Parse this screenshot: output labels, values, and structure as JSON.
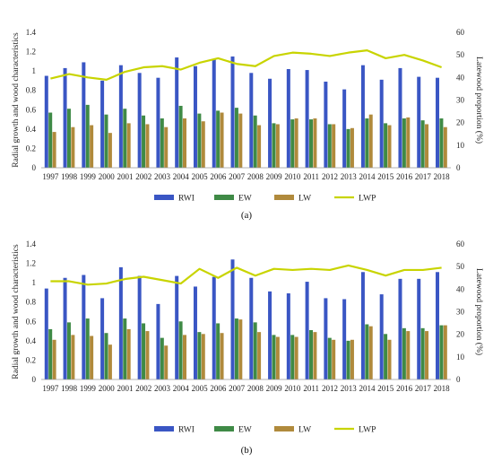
{
  "chart_data": [
    {
      "type": "bar",
      "panel_label": "(a)",
      "categories": [
        "1997",
        "1998",
        "1999",
        "2000",
        "2001",
        "2002",
        "2003",
        "2004",
        "2005",
        "2006",
        "2007",
        "2008",
        "2009",
        "2010",
        "2011",
        "2012",
        "2013",
        "2014",
        "2015",
        "2016",
        "2017",
        "2018"
      ],
      "ylabel": "Radial growth and wood characteristics",
      "y2label": "Latewood proportion (%)",
      "ylim": [
        0,
        1.4
      ],
      "y2lim": [
        0,
        60
      ],
      "yticks": [
        "0",
        "0.2",
        "0.4",
        "0.6",
        "0.8",
        "1",
        "1.2",
        "1.4"
      ],
      "y2ticks": [
        "0",
        "10",
        "20",
        "30",
        "40",
        "50",
        "60"
      ],
      "series": [
        {
          "name": "RWI",
          "kind": "bar",
          "axis": "left",
          "color": "#3a56c4",
          "values": [
            0.95,
            1.03,
            1.09,
            0.9,
            1.06,
            0.98,
            0.93,
            1.14,
            1.05,
            1.12,
            1.15,
            0.98,
            0.92,
            1.02,
            1.01,
            0.89,
            0.81,
            1.06,
            0.91,
            1.03,
            0.94,
            0.93
          ]
        },
        {
          "name": "EW",
          "kind": "bar",
          "axis": "left",
          "color": "#3f8a46",
          "values": [
            0.57,
            0.61,
            0.65,
            0.55,
            0.61,
            0.54,
            0.51,
            0.64,
            0.56,
            0.59,
            0.62,
            0.54,
            0.46,
            0.5,
            0.5,
            0.45,
            0.4,
            0.51,
            0.46,
            0.51,
            0.49,
            0.51
          ]
        },
        {
          "name": "LW",
          "kind": "bar",
          "axis": "left",
          "color": "#b08a3c",
          "values": [
            0.37,
            0.42,
            0.44,
            0.36,
            0.46,
            0.45,
            0.42,
            0.51,
            0.48,
            0.57,
            0.56,
            0.44,
            0.45,
            0.51,
            0.51,
            0.45,
            0.41,
            0.55,
            0.44,
            0.52,
            0.45,
            0.42
          ]
        },
        {
          "name": "LWP",
          "kind": "line",
          "axis": "right",
          "color": "#c8d400",
          "values": [
            39.5,
            41.5,
            40.0,
            39.0,
            42.5,
            44.5,
            45.0,
            43.5,
            46.5,
            48.5,
            46.0,
            45.0,
            49.5,
            51.0,
            50.5,
            49.5,
            51.0,
            52.0,
            48.5,
            50.0,
            47.5,
            44.5
          ]
        }
      ]
    },
    {
      "type": "bar",
      "panel_label": "(b)",
      "categories": [
        "1997",
        "1998",
        "1999",
        "2000",
        "2001",
        "2002",
        "2003",
        "2004",
        "2005",
        "2006",
        "2007",
        "2008",
        "2009",
        "2010",
        "2011",
        "2012",
        "2013",
        "2014",
        "2015",
        "2016",
        "2017",
        "2018"
      ],
      "ylabel": "Radial growth and wood characteristics",
      "y2label": "Latewood proportion (%)",
      "ylim": [
        0,
        1.4
      ],
      "y2lim": [
        0,
        60
      ],
      "yticks": [
        "0",
        "0.2",
        "0.4",
        "0.6",
        "0.8",
        "1",
        "1.2",
        "1.4"
      ],
      "y2ticks": [
        "0",
        "10",
        "20",
        "30",
        "40",
        "50",
        "60"
      ],
      "series": [
        {
          "name": "RWI",
          "kind": "bar",
          "axis": "left",
          "color": "#3a56c4",
          "values": [
            0.94,
            1.05,
            1.08,
            0.84,
            1.16,
            1.07,
            0.78,
            1.07,
            0.96,
            1.06,
            1.24,
            1.05,
            0.91,
            0.89,
            1.01,
            0.84,
            0.83,
            1.11,
            0.88,
            1.04,
            1.04,
            1.11
          ]
        },
        {
          "name": "EW",
          "kind": "bar",
          "axis": "left",
          "color": "#3f8a46",
          "values": [
            0.52,
            0.59,
            0.63,
            0.48,
            0.63,
            0.58,
            0.43,
            0.6,
            0.49,
            0.58,
            0.63,
            0.59,
            0.46,
            0.46,
            0.51,
            0.43,
            0.4,
            0.57,
            0.47,
            0.53,
            0.53,
            0.56
          ]
        },
        {
          "name": "LW",
          "kind": "bar",
          "axis": "left",
          "color": "#b08a3c",
          "values": [
            0.41,
            0.46,
            0.45,
            0.36,
            0.52,
            0.5,
            0.35,
            0.46,
            0.47,
            0.48,
            0.62,
            0.49,
            0.44,
            0.44,
            0.49,
            0.41,
            0.41,
            0.55,
            0.41,
            0.5,
            0.5,
            0.56
          ]
        },
        {
          "name": "LWP",
          "kind": "line",
          "axis": "right",
          "color": "#c8d400",
          "values": [
            43.5,
            43.5,
            42.0,
            42.5,
            44.5,
            45.5,
            44.0,
            42.5,
            49.0,
            45.0,
            49.5,
            46.0,
            49.0,
            48.5,
            49.0,
            48.5,
            50.5,
            48.5,
            46.0,
            48.5,
            48.5,
            49.5
          ]
        }
      ]
    }
  ]
}
